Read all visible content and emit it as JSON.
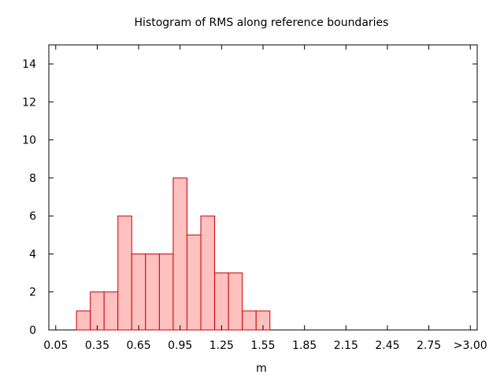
{
  "chart_data": {
    "type": "bar",
    "title": "Histogram of RMS along reference boundaries",
    "xlabel": "m",
    "ylabel": "",
    "bin_width": 0.1,
    "bins": [
      {
        "x": 0.25,
        "count": 1
      },
      {
        "x": 0.35,
        "count": 2
      },
      {
        "x": 0.45,
        "count": 2
      },
      {
        "x": 0.55,
        "count": 6
      },
      {
        "x": 0.65,
        "count": 4
      },
      {
        "x": 0.75,
        "count": 4
      },
      {
        "x": 0.85,
        "count": 4
      },
      {
        "x": 0.95,
        "count": 8
      },
      {
        "x": 1.05,
        "count": 5
      },
      {
        "x": 1.15,
        "count": 6
      },
      {
        "x": 1.25,
        "count": 3
      },
      {
        "x": 1.35,
        "count": 3
      },
      {
        "x": 1.45,
        "count": 1
      },
      {
        "x": 1.55,
        "count": 1
      }
    ],
    "xlim": [
      0.0,
      3.1
    ],
    "ylim": [
      0,
      15
    ],
    "x_ticks": [
      {
        "value": 0.05,
        "label": "0.05"
      },
      {
        "value": 0.35,
        "label": "0.35"
      },
      {
        "value": 0.65,
        "label": "0.65"
      },
      {
        "value": 0.95,
        "label": "0.95"
      },
      {
        "value": 1.25,
        "label": "1.25"
      },
      {
        "value": 1.55,
        "label": "1.55"
      },
      {
        "value": 1.85,
        "label": "1.85"
      },
      {
        "value": 2.15,
        "label": "2.15"
      },
      {
        "value": 2.45,
        "label": "2.45"
      },
      {
        "value": 2.75,
        "label": "2.75"
      },
      {
        "value": 3.05,
        "label": ">3.00"
      }
    ],
    "y_ticks": [
      0,
      2,
      4,
      6,
      8,
      10,
      12,
      14
    ],
    "grid": false,
    "bar_fill": "#ffc0c0",
    "bar_stroke": "#cc0000"
  }
}
